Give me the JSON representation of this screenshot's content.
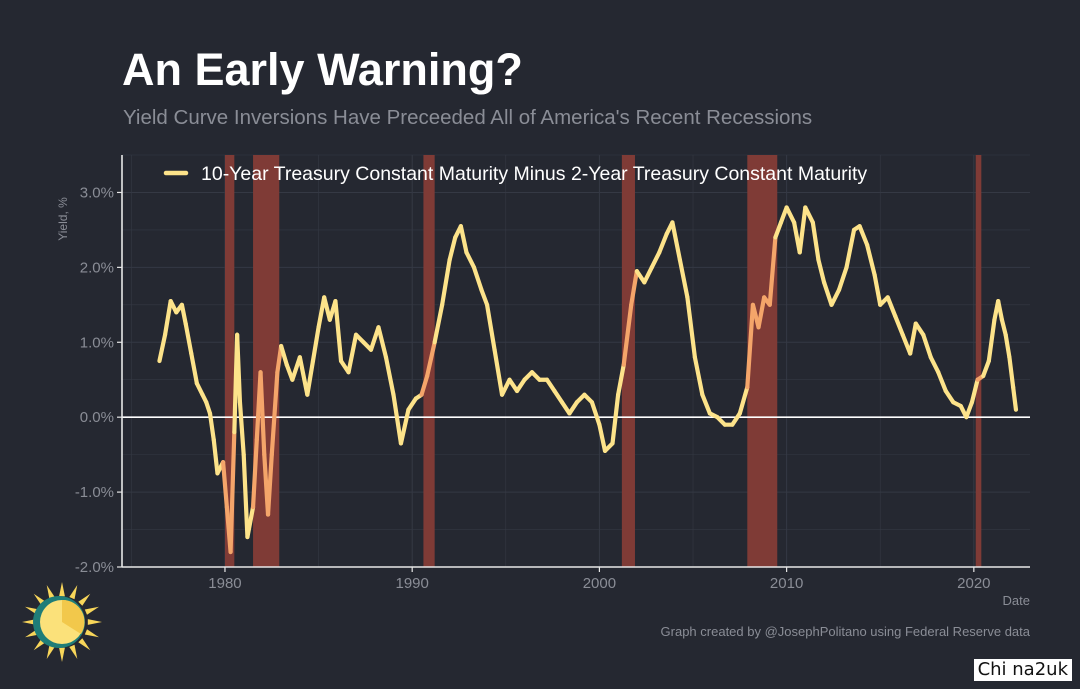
{
  "title": "An Early Warning?",
  "subtitle": "Yield Curve Inversions Have Preceeded All of America's Recent Recessions",
  "caption": "Graph created by @JosephPolitano using Federal Reserve data",
  "watermark": "Chi na2uk",
  "logo_icon": "sun-logo-icon",
  "colors": {
    "background": "#252831",
    "line": "#fde38a",
    "line_in_recession": "#f4a56a",
    "recession_band": "#7f3b36",
    "zero_line": "#ffffff",
    "grid": "#353944",
    "text_muted": "#8a8d96"
  },
  "chart_data": {
    "type": "line",
    "xlabel": "Date",
    "ylabel": "Yield, %",
    "xlim": [
      1974.5,
      2023
    ],
    "ylim": [
      -2.0,
      3.5
    ],
    "x_ticks": [
      1980,
      1990,
      2000,
      2010,
      2020
    ],
    "x_tick_labels": [
      "1980",
      "1990",
      "2000",
      "2010",
      "2020"
    ],
    "y_ticks": [
      -2,
      -1,
      0,
      1,
      2,
      3
    ],
    "y_tick_labels": [
      "-2.0%",
      "-1.0%",
      "0.0%",
      "1.0%",
      "2.0%",
      "3.0%"
    ],
    "grid": true,
    "legend_position": "top",
    "recessions": [
      [
        1980.0,
        1980.5
      ],
      [
        1981.5,
        1982.9
      ],
      [
        1990.6,
        1991.2
      ],
      [
        2001.2,
        2001.9
      ],
      [
        2007.9,
        2009.5
      ],
      [
        2020.1,
        2020.4
      ]
    ],
    "series": [
      {
        "name": "10-Year Treasury Constant Maturity Minus 2-Year Treasury Constant Maturity",
        "points": [
          [
            1976.5,
            0.75
          ],
          [
            1976.8,
            1.1
          ],
          [
            1977.1,
            1.55
          ],
          [
            1977.4,
            1.4
          ],
          [
            1977.7,
            1.5
          ],
          [
            1977.9,
            1.25
          ],
          [
            1978.2,
            0.85
          ],
          [
            1978.5,
            0.45
          ],
          [
            1978.8,
            0.3
          ],
          [
            1979.0,
            0.2
          ],
          [
            1979.2,
            0.05
          ],
          [
            1979.4,
            -0.3
          ],
          [
            1979.6,
            -0.75
          ],
          [
            1979.9,
            -0.6
          ],
          [
            1980.1,
            -1.2
          ],
          [
            1980.3,
            -1.8
          ],
          [
            1980.5,
            -0.2
          ],
          [
            1980.65,
            1.1
          ],
          [
            1980.8,
            0.2
          ],
          [
            1981.0,
            -0.5
          ],
          [
            1981.2,
            -1.6
          ],
          [
            1981.5,
            -1.2
          ],
          [
            1981.7,
            -0.3
          ],
          [
            1981.9,
            0.6
          ],
          [
            1982.1,
            -0.5
          ],
          [
            1982.3,
            -1.3
          ],
          [
            1982.5,
            -0.5
          ],
          [
            1982.8,
            0.6
          ],
          [
            1983.0,
            0.95
          ],
          [
            1983.3,
            0.7
          ],
          [
            1983.6,
            0.5
          ],
          [
            1984.0,
            0.8
          ],
          [
            1984.4,
            0.3
          ],
          [
            1984.7,
            0.75
          ],
          [
            1985.0,
            1.2
          ],
          [
            1985.3,
            1.6
          ],
          [
            1985.6,
            1.3
          ],
          [
            1985.9,
            1.55
          ],
          [
            1986.2,
            0.75
          ],
          [
            1986.6,
            0.6
          ],
          [
            1987.0,
            1.1
          ],
          [
            1987.4,
            1.0
          ],
          [
            1987.8,
            0.9
          ],
          [
            1988.2,
            1.2
          ],
          [
            1988.6,
            0.8
          ],
          [
            1989.0,
            0.3
          ],
          [
            1989.4,
            -0.35
          ],
          [
            1989.8,
            0.1
          ],
          [
            1990.2,
            0.25
          ],
          [
            1990.5,
            0.3
          ],
          [
            1990.8,
            0.55
          ],
          [
            1991.2,
            1.0
          ],
          [
            1991.6,
            1.5
          ],
          [
            1992.0,
            2.1
          ],
          [
            1992.3,
            2.4
          ],
          [
            1992.6,
            2.55
          ],
          [
            1992.9,
            2.2
          ],
          [
            1993.3,
            2.0
          ],
          [
            1993.7,
            1.7
          ],
          [
            1994.0,
            1.5
          ],
          [
            1994.4,
            0.9
          ],
          [
            1994.8,
            0.3
          ],
          [
            1995.2,
            0.5
          ],
          [
            1995.6,
            0.35
          ],
          [
            1996.0,
            0.5
          ],
          [
            1996.4,
            0.6
          ],
          [
            1996.8,
            0.5
          ],
          [
            1997.2,
            0.5
          ],
          [
            1997.6,
            0.35
          ],
          [
            1998.0,
            0.2
          ],
          [
            1998.4,
            0.05
          ],
          [
            1998.8,
            0.2
          ],
          [
            1999.2,
            0.3
          ],
          [
            1999.6,
            0.2
          ],
          [
            2000.0,
            -0.1
          ],
          [
            2000.3,
            -0.45
          ],
          [
            2000.7,
            -0.35
          ],
          [
            2001.0,
            0.3
          ],
          [
            2001.3,
            0.7
          ],
          [
            2001.7,
            1.5
          ],
          [
            2002.0,
            1.95
          ],
          [
            2002.4,
            1.8
          ],
          [
            2002.8,
            2.0
          ],
          [
            2003.2,
            2.2
          ],
          [
            2003.6,
            2.45
          ],
          [
            2003.9,
            2.6
          ],
          [
            2004.3,
            2.1
          ],
          [
            2004.7,
            1.6
          ],
          [
            2005.1,
            0.8
          ],
          [
            2005.5,
            0.3
          ],
          [
            2005.9,
            0.05
          ],
          [
            2006.3,
            0.0
          ],
          [
            2006.7,
            -0.1
          ],
          [
            2007.1,
            -0.1
          ],
          [
            2007.5,
            0.05
          ],
          [
            2007.9,
            0.4
          ],
          [
            2008.2,
            1.5
          ],
          [
            2008.5,
            1.2
          ],
          [
            2008.8,
            1.6
          ],
          [
            2009.1,
            1.5
          ],
          [
            2009.4,
            2.4
          ],
          [
            2009.7,
            2.6
          ],
          [
            2010.0,
            2.8
          ],
          [
            2010.4,
            2.6
          ],
          [
            2010.7,
            2.2
          ],
          [
            2011.0,
            2.8
          ],
          [
            2011.4,
            2.6
          ],
          [
            2011.7,
            2.1
          ],
          [
            2012.0,
            1.8
          ],
          [
            2012.4,
            1.5
          ],
          [
            2012.8,
            1.7
          ],
          [
            2013.2,
            2.0
          ],
          [
            2013.6,
            2.5
          ],
          [
            2013.9,
            2.55
          ],
          [
            2014.3,
            2.3
          ],
          [
            2014.7,
            1.9
          ],
          [
            2015.0,
            1.5
          ],
          [
            2015.4,
            1.6
          ],
          [
            2015.8,
            1.35
          ],
          [
            2016.2,
            1.1
          ],
          [
            2016.6,
            0.85
          ],
          [
            2016.9,
            1.25
          ],
          [
            2017.3,
            1.1
          ],
          [
            2017.7,
            0.8
          ],
          [
            2018.1,
            0.6
          ],
          [
            2018.5,
            0.35
          ],
          [
            2018.9,
            0.2
          ],
          [
            2019.3,
            0.15
          ],
          [
            2019.6,
            0.0
          ],
          [
            2019.9,
            0.2
          ],
          [
            2020.2,
            0.5
          ],
          [
            2020.5,
            0.55
          ],
          [
            2020.8,
            0.75
          ],
          [
            2021.1,
            1.3
          ],
          [
            2021.3,
            1.55
          ],
          [
            2021.5,
            1.3
          ],
          [
            2021.7,
            1.1
          ],
          [
            2021.9,
            0.8
          ],
          [
            2022.1,
            0.4
          ],
          [
            2022.25,
            0.1
          ]
        ]
      }
    ]
  }
}
